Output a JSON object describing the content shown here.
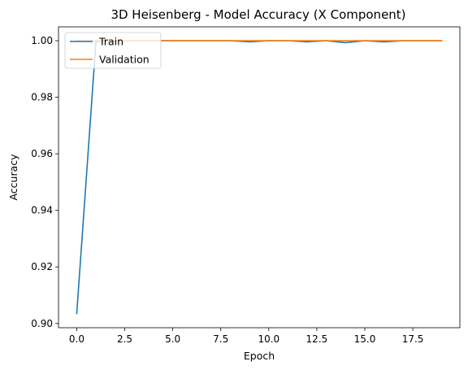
{
  "chart_data": {
    "type": "line",
    "title": "3D Heisenberg - Model Accuracy (X Component)",
    "xlabel": "Epoch",
    "ylabel": "Accuracy",
    "xlim": [
      -0.95,
      19.95
    ],
    "ylim": [
      0.8985,
      1.0049
    ],
    "xticks": [
      0.0,
      2.5,
      5.0,
      7.5,
      10.0,
      12.5,
      15.0,
      17.5
    ],
    "xtick_labels": [
      "0.0",
      "2.5",
      "5.0",
      "7.5",
      "10.0",
      "12.5",
      "15.0",
      "17.5"
    ],
    "yticks": [
      0.9,
      0.92,
      0.94,
      0.96,
      0.98,
      1.0
    ],
    "ytick_labels": [
      "0.90",
      "0.92",
      "0.94",
      "0.96",
      "0.98",
      "1.00"
    ],
    "grid": false,
    "legend_position": "top-left",
    "x": [
      0,
      1,
      2,
      3,
      4,
      5,
      6,
      7,
      8,
      9,
      10,
      11,
      12,
      13,
      14,
      15,
      16,
      17,
      18,
      19
    ],
    "series": [
      {
        "name": "Train",
        "color": "#1f77b4",
        "values": [
          0.9035,
          0.9997,
          0.9998,
          1.0,
          1.0,
          1.0,
          1.0,
          1.0,
          1.0,
          0.9996,
          1.0,
          1.0,
          0.9996,
          1.0,
          0.9993,
          1.0,
          0.9996,
          1.0,
          1.0,
          1.0
        ]
      },
      {
        "name": "Validation",
        "color": "#ff7f0e",
        "values": [
          1.0,
          1.0,
          1.0,
          1.0,
          1.0,
          1.0,
          1.0,
          1.0,
          1.0,
          1.0,
          1.0,
          1.0,
          1.0,
          1.0,
          1.0,
          1.0,
          1.0,
          1.0,
          1.0,
          1.0
        ]
      }
    ]
  }
}
